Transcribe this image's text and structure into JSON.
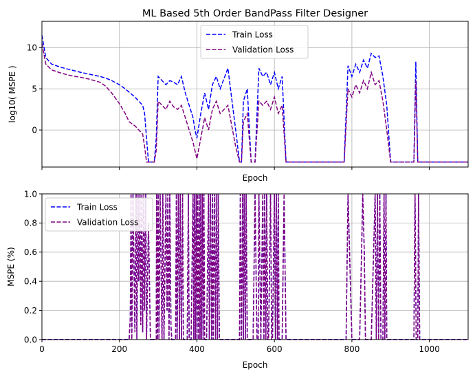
{
  "chart_data": [
    {
      "type": "line",
      "title": "ML Based 5th Order BandPass Filter Designer",
      "xlabel": "Epoch",
      "ylabel": "log10( MSPE )",
      "xlim": [
        0,
        1100
      ],
      "ylim": [
        -4.5,
        13.2
      ],
      "xticks": [
        0,
        200,
        400,
        600,
        800,
        1000
      ],
      "xtick_labels_visible": false,
      "yticks": [
        10,
        5,
        0
      ],
      "ytick_labels": [
        "10",
        "5",
        "0"
      ],
      "grid": true,
      "legend": "top-center",
      "series": [
        {
          "name": "Train Loss",
          "color": "#0000ff",
          "style": "dashed",
          "x": [
            0,
            10,
            25,
            50,
            75,
            100,
            120,
            150,
            165,
            180,
            200,
            215,
            225,
            240,
            250,
            260,
            265,
            270,
            275,
            280,
            290,
            295,
            300,
            310,
            320,
            330,
            340,
            350,
            360,
            370,
            380,
            390,
            395,
            400,
            410,
            420,
            430,
            440,
            450,
            460,
            480,
            500,
            510,
            515,
            520,
            530,
            540,
            550,
            560,
            570,
            580,
            590,
            600,
            610,
            620,
            630,
            700,
            780,
            790,
            800,
            810,
            820,
            830,
            840,
            850,
            860,
            870,
            880,
            890,
            900,
            950,
            955,
            960,
            965,
            970,
            1000,
            1100
          ],
          "y": [
            11.5,
            8.8,
            8.0,
            7.6,
            7.3,
            7.0,
            6.8,
            6.5,
            6.3,
            6.0,
            5.5,
            5.0,
            4.6,
            4.0,
            3.5,
            3.0,
            2.0,
            -1.0,
            -3.9,
            -3.9,
            -3.9,
            -1.0,
            6.5,
            6.0,
            5.5,
            6.0,
            5.8,
            5.5,
            6.5,
            4.5,
            3.0,
            1.5,
            0.0,
            -1.0,
            2.0,
            4.5,
            2.5,
            5.5,
            6.5,
            5.0,
            7.5,
            0.0,
            -3.9,
            -3.9,
            3.5,
            5.0,
            -3.9,
            -3.9,
            7.5,
            6.5,
            7.0,
            5.5,
            7.0,
            5.0,
            6.5,
            -3.9,
            -3.9,
            -3.9,
            7.8,
            6.5,
            8.0,
            7.0,
            8.5,
            7.5,
            9.3,
            8.8,
            9.0,
            6.5,
            3.0,
            -3.9,
            -3.9,
            -3.9,
            -3.9,
            8.3,
            -3.9,
            -3.9,
            -3.9
          ]
        },
        {
          "name": "Validation Loss",
          "color": "#800080",
          "style": "dashed",
          "x": [
            0,
            10,
            25,
            50,
            75,
            100,
            120,
            150,
            165,
            180,
            200,
            215,
            225,
            240,
            250,
            260,
            265,
            270,
            275,
            280,
            290,
            295,
            300,
            310,
            320,
            330,
            340,
            350,
            360,
            370,
            380,
            390,
            395,
            400,
            410,
            420,
            430,
            440,
            450,
            460,
            480,
            500,
            510,
            515,
            520,
            530,
            540,
            550,
            560,
            570,
            580,
            590,
            600,
            610,
            620,
            630,
            700,
            780,
            790,
            800,
            810,
            820,
            830,
            840,
            850,
            860,
            870,
            880,
            890,
            900,
            950,
            955,
            960,
            965,
            970,
            1000,
            1100
          ],
          "y": [
            10.5,
            8.0,
            7.3,
            6.9,
            6.6,
            6.4,
            6.2,
            5.8,
            5.3,
            4.5,
            3.2,
            2.0,
            1.0,
            0.5,
            0.0,
            -0.5,
            -2.0,
            -3.9,
            -3.9,
            -3.9,
            -3.9,
            -2.5,
            3.5,
            3.0,
            2.5,
            3.5,
            2.8,
            2.5,
            3.0,
            1.5,
            0.0,
            -1.5,
            -2.5,
            -3.5,
            -1.0,
            1.5,
            0.0,
            2.5,
            3.5,
            2.0,
            3.0,
            -2.0,
            -3.9,
            -3.9,
            1.0,
            2.0,
            -3.9,
            -3.9,
            3.5,
            3.0,
            3.5,
            2.5,
            4.0,
            2.0,
            3.0,
            -3.9,
            -3.9,
            -3.9,
            5.0,
            4.0,
            5.5,
            4.5,
            6.0,
            5.0,
            7.0,
            5.5,
            6.0,
            3.5,
            0.0,
            -3.9,
            -3.9,
            -3.9,
            -3.9,
            6.0,
            -3.9,
            -3.9,
            -3.9
          ]
        }
      ]
    },
    {
      "type": "line",
      "title": "",
      "xlabel": "Epoch",
      "ylabel": "MSPE (%)",
      "xlim": [
        0,
        1100
      ],
      "ylim": [
        0,
        1.0
      ],
      "xticks": [
        0,
        200,
        400,
        600,
        800,
        1000
      ],
      "xtick_labels": [
        "0",
        "200",
        "400",
        "600",
        "800",
        "1000"
      ],
      "yticks": [
        0.0,
        0.2,
        0.4,
        0.6,
        0.8,
        1.0
      ],
      "ytick_labels": [
        "0.0",
        "0.2",
        "0.4",
        "0.6",
        "0.8",
        "1.0"
      ],
      "grid": true,
      "legend": "top-left",
      "series": [
        {
          "name": "Train Loss",
          "color": "#0000ff",
          "style": "dashed",
          "x": [
            0,
            225,
            228,
            230,
            232,
            235,
            240,
            243,
            245,
            248,
            250,
            253,
            255,
            258,
            260,
            263,
            265,
            268,
            270,
            275,
            280,
            295,
            296,
            298,
            300,
            302,
            305,
            310,
            312,
            315,
            320,
            323,
            325,
            328,
            330,
            333,
            335,
            345,
            347,
            349,
            352,
            355,
            357,
            360,
            363,
            365,
            375,
            378,
            380,
            385,
            390,
            392,
            394,
            396,
            398,
            400,
            402,
            404,
            406,
            408,
            410,
            412,
            414,
            416,
            418,
            420,
            425,
            430,
            432,
            435,
            438,
            440,
            442,
            445,
            448,
            450,
            453,
            455,
            458,
            460,
            510,
            512,
            515,
            518,
            520,
            522,
            525,
            527,
            530,
            545,
            550,
            555,
            558,
            560,
            565,
            570,
            573,
            575,
            578,
            580,
            583,
            585,
            590,
            593,
            595,
            600,
            603,
            605,
            608,
            610,
            612,
            620,
            625,
            630,
            780,
            785,
            790,
            800,
            820,
            825,
            828,
            832,
            835,
            850,
            860,
            863,
            866,
            869,
            872,
            875,
            880,
            883,
            885,
            888,
            890,
            895,
            900,
            960,
            963,
            966,
            970,
            972,
            975,
            980,
            1100
          ],
          "y": [
            0.0,
            0.0,
            0.15,
            1.0,
            0.0,
            1.0,
            0.05,
            1.0,
            0.0,
            1.0,
            0.4,
            1.0,
            0.1,
            1.0,
            0.05,
            1.0,
            0.2,
            1.0,
            0.0,
            0.8,
            0.0,
            0.0,
            1.0,
            0.0,
            1.0,
            0.0,
            1.0,
            0.0,
            1.0,
            0.0,
            1.0,
            0.2,
            1.0,
            0.0,
            1.0,
            0.1,
            0.0,
            0.0,
            1.0,
            0.0,
            1.0,
            0.0,
            1.0,
            0.0,
            1.0,
            0.0,
            0.0,
            1.0,
            0.0,
            0.0,
            1.0,
            0.0,
            1.0,
            0.0,
            1.0,
            0.0,
            1.0,
            0.0,
            1.0,
            0.0,
            1.0,
            0.0,
            1.0,
            0.0,
            1.0,
            0.0,
            0.0,
            1.0,
            0.0,
            1.0,
            0.0,
            1.0,
            0.0,
            1.0,
            0.0,
            1.0,
            0.0,
            1.0,
            0.0,
            0.0,
            0.0,
            1.0,
            0.0,
            1.0,
            0.0,
            1.0,
            0.0,
            1.0,
            0.0,
            0.0,
            1.0,
            0.0,
            0.0,
            1.0,
            0.0,
            1.0,
            0.0,
            1.0,
            0.0,
            1.0,
            0.0,
            0.0,
            1.0,
            0.0,
            0.0,
            1.0,
            0.0,
            1.0,
            0.0,
            1.0,
            0.0,
            0.0,
            1.0,
            0.0,
            0.0,
            0.0,
            1.0,
            0.0,
            0.0,
            0.6,
            1.0,
            0.6,
            0.0,
            0.0,
            1.0,
            0.0,
            1.0,
            0.0,
            1.0,
            0.0,
            0.0,
            1.0,
            0.0,
            1.0,
            0.0,
            0.0,
            0.0,
            0.0,
            1.0,
            0.0,
            0.0,
            1.0,
            0.0,
            0.0,
            0.0
          ]
        },
        {
          "name": "Validation Loss",
          "color": "#800080",
          "style": "dashed",
          "x": [
            0,
            225,
            228,
            230,
            232,
            235,
            240,
            243,
            245,
            248,
            250,
            253,
            255,
            258,
            260,
            263,
            265,
            268,
            270,
            275,
            280,
            295,
            296,
            298,
            300,
            302,
            305,
            310,
            312,
            315,
            320,
            323,
            325,
            328,
            330,
            333,
            335,
            345,
            347,
            349,
            352,
            355,
            357,
            360,
            363,
            365,
            375,
            378,
            380,
            385,
            390,
            392,
            394,
            396,
            398,
            400,
            402,
            404,
            406,
            408,
            410,
            412,
            414,
            416,
            418,
            420,
            425,
            430,
            432,
            435,
            438,
            440,
            442,
            445,
            448,
            450,
            453,
            455,
            458,
            460,
            510,
            512,
            515,
            518,
            520,
            522,
            525,
            527,
            530,
            545,
            550,
            555,
            558,
            560,
            565,
            570,
            573,
            575,
            578,
            580,
            583,
            585,
            590,
            593,
            595,
            600,
            603,
            605,
            608,
            610,
            612,
            620,
            625,
            630,
            780,
            785,
            790,
            800,
            820,
            825,
            828,
            832,
            835,
            850,
            860,
            863,
            866,
            869,
            872,
            875,
            880,
            883,
            885,
            888,
            890,
            895,
            900,
            960,
            963,
            966,
            970,
            972,
            975,
            980,
            1100
          ],
          "y": [
            0.0,
            0.0,
            0.15,
            1.0,
            0.0,
            1.0,
            0.05,
            1.0,
            0.0,
            1.0,
            0.4,
            1.0,
            0.1,
            1.0,
            0.05,
            1.0,
            0.2,
            1.0,
            0.0,
            0.8,
            0.0,
            0.0,
            1.0,
            0.0,
            1.0,
            0.0,
            1.0,
            0.0,
            1.0,
            0.0,
            1.0,
            0.2,
            1.0,
            0.0,
            1.0,
            0.1,
            0.0,
            0.0,
            1.0,
            0.0,
            1.0,
            0.0,
            1.0,
            0.0,
            1.0,
            0.0,
            0.0,
            1.0,
            0.0,
            0.0,
            1.0,
            0.0,
            1.0,
            0.0,
            1.0,
            0.0,
            1.0,
            0.0,
            1.0,
            0.0,
            1.0,
            0.0,
            1.0,
            0.0,
            1.0,
            0.0,
            0.0,
            1.0,
            0.0,
            1.0,
            0.0,
            1.0,
            0.0,
            1.0,
            0.0,
            1.0,
            0.0,
            1.0,
            0.0,
            0.0,
            0.0,
            1.0,
            0.0,
            1.0,
            0.0,
            1.0,
            0.0,
            1.0,
            0.0,
            0.0,
            1.0,
            0.0,
            0.0,
            1.0,
            0.0,
            1.0,
            0.0,
            1.0,
            0.0,
            1.0,
            0.0,
            0.0,
            1.0,
            0.0,
            0.0,
            1.0,
            0.0,
            1.0,
            0.0,
            1.0,
            0.0,
            0.0,
            1.0,
            0.0,
            0.0,
            0.0,
            1.0,
            0.0,
            0.0,
            0.6,
            1.0,
            0.6,
            0.0,
            0.0,
            1.0,
            0.0,
            1.0,
            0.0,
            1.0,
            0.0,
            0.0,
            1.0,
            0.0,
            1.0,
            0.0,
            0.0,
            0.0,
            0.0,
            1.0,
            0.0,
            0.0,
            1.0,
            0.0,
            0.0,
            0.0
          ]
        }
      ]
    }
  ]
}
